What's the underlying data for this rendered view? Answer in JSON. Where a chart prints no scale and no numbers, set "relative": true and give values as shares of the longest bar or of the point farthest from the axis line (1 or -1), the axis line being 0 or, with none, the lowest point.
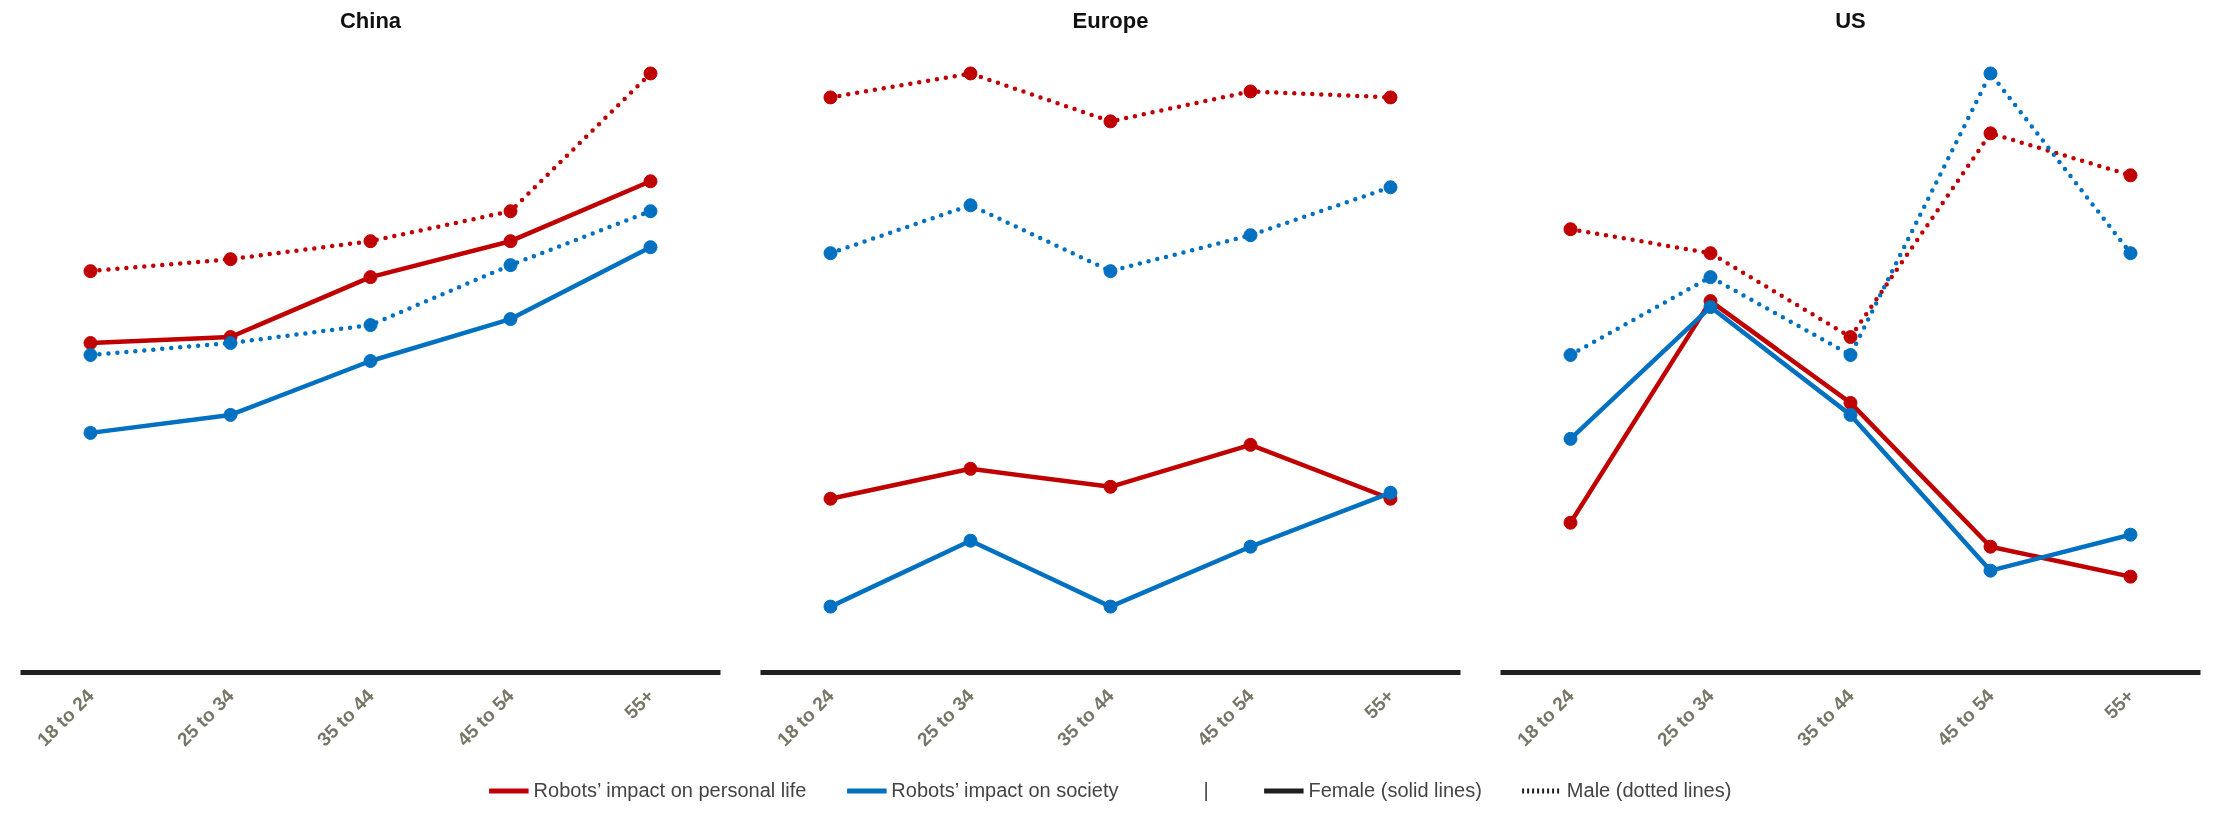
{
  "chart_data": [
    {
      "type": "line",
      "title": "China",
      "categories": [
        "18 to 24",
        "25 to 34",
        "35 to 44",
        "45 to 54",
        "55+"
      ],
      "relative": true,
      "marker": "circle",
      "legend": "bottom",
      "grid": false,
      "annotations": [
        "|",
        "Female (solid lines)",
        "Male (dotted lines)"
      ],
      "series": [
        {
          "name": "Robots’ impact on personal life",
          "color": "#c00000",
          "line_style": "solid",
          "values": [
            0.55,
            0.56,
            0.66,
            0.72,
            0.82
          ]
        },
        {
          "name": "Robots’ impact on society",
          "color": "#0070c0",
          "line_style": "solid",
          "values": [
            0.4,
            0.43,
            0.52,
            0.59,
            0.71
          ]
        },
        {
          "color": "#c00000",
          "line_style": "dotted",
          "values": [
            0.67,
            0.69,
            0.72,
            0.77,
            1
          ]
        },
        {
          "color": "#0070c0",
          "line_style": "dotted",
          "values": [
            0.53,
            0.55,
            0.58,
            0.68,
            0.77
          ]
        }
      ]
    },
    {
      "type": "line",
      "title": "Europe",
      "categories": [
        "18 to 24",
        "25 to 34",
        "35 to 44",
        "45 to 54",
        "55+"
      ],
      "relative": true,
      "marker": "circle",
      "grid": false,
      "series": [
        {
          "color": "#c00000",
          "line_style": "solid",
          "values": [
            0.29,
            0.34,
            0.31,
            0.38,
            0.29
          ]
        },
        {
          "color": "#0070c0",
          "line_style": "solid",
          "values": [
            0.11,
            0.22,
            0.11,
            0.21,
            0.3
          ]
        },
        {
          "color": "#c00000",
          "line_style": "dotted",
          "values": [
            0.96,
            1,
            0.92,
            0.97,
            0.96
          ]
        },
        {
          "color": "#0070c0",
          "line_style": "dotted",
          "values": [
            0.7,
            0.78,
            0.67,
            0.73,
            0.81
          ]
        }
      ]
    },
    {
      "type": "line",
      "title": "US",
      "categories": [
        "18 to 24",
        "25 to 34",
        "35 to 44",
        "45 to 54",
        "55+"
      ],
      "relative": true,
      "marker": "circle",
      "grid": false,
      "series": [
        {
          "color": "#c00000",
          "line_style": "solid",
          "values": [
            0.25,
            0.62,
            0.45,
            0.21,
            0.16
          ]
        },
        {
          "color": "#0070c0",
          "line_style": "solid",
          "values": [
            0.39,
            0.61,
            0.43,
            0.17,
            0.23
          ]
        },
        {
          "color": "#c00000",
          "line_style": "dotted",
          "values": [
            0.74,
            0.7,
            0.56,
            0.9,
            0.83
          ]
        },
        {
          "color": "#0070c0",
          "line_style": "dotted",
          "values": [
            0.53,
            0.66,
            0.53,
            1,
            0.7
          ]
        }
      ]
    }
  ]
}
